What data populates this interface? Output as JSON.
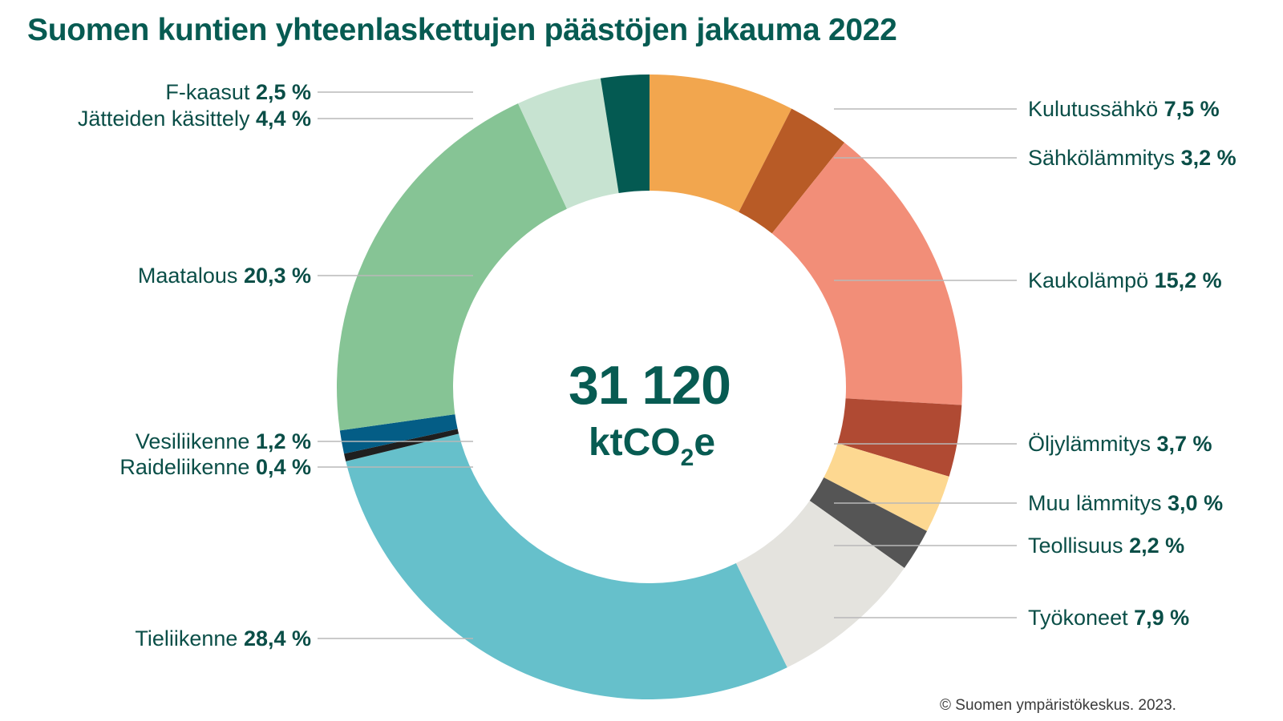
{
  "page": {
    "title": "Suomen kuntien yhteenlaskettujen päästöjen jakauma 2022",
    "source": "© Suomen ympäristökeskus. 2023."
  },
  "center": {
    "total": "31 120",
    "unit_prefix": "ktCO",
    "unit_sub": "2",
    "unit_suffix": "e"
  },
  "chart_data": {
    "type": "pie",
    "subtype": "donut",
    "title": "Suomen kuntien yhteenlaskettujen päästöjen jakauma 2022",
    "total": 31120,
    "total_unit": "ktCO2e",
    "value_unit": "%",
    "slices": [
      {
        "label": "Kulutussähkö",
        "value": 7.5,
        "display": "7,5 %",
        "color": "#f2a64e"
      },
      {
        "label": "Sähkölämmitys",
        "value": 3.2,
        "display": "3,2 %",
        "color": "#b85b26"
      },
      {
        "label": "Kaukolämpö",
        "value": 15.2,
        "display": "15,2 %",
        "color": "#f28e78"
      },
      {
        "label": "Öljylämmitys",
        "value": 3.7,
        "display": "3,7 %",
        "color": "#b04a33"
      },
      {
        "label": "Muu lämmitys",
        "value": 3.0,
        "display": "3,0 %",
        "color": "#fdd891"
      },
      {
        "label": "Teollisuus",
        "value": 2.2,
        "display": "2,2 %",
        "color": "#555555"
      },
      {
        "label": "Työkoneet",
        "value": 7.9,
        "display": "7,9 %",
        "color": "#e4e3de"
      },
      {
        "label": "Tieliikenne",
        "value": 28.4,
        "display": "28,4 %",
        "color": "#66c0cb"
      },
      {
        "label": "Raideliikenne",
        "value": 0.4,
        "display": "0,4 %",
        "color": "#1f1f1f"
      },
      {
        "label": "Vesiliikenne",
        "value": 1.2,
        "display": "1,2 %",
        "color": "#045d86"
      },
      {
        "label": "Maatalous",
        "value": 20.3,
        "display": "20,3 %",
        "color": "#86c495"
      },
      {
        "label": "Jätteiden käsittely",
        "value": 4.4,
        "display": "4,4 %",
        "color": "#c7e3d1"
      },
      {
        "label": "F-kaasut",
        "value": 2.5,
        "display": "2,5 %",
        "color": "#045a52"
      }
    ]
  }
}
